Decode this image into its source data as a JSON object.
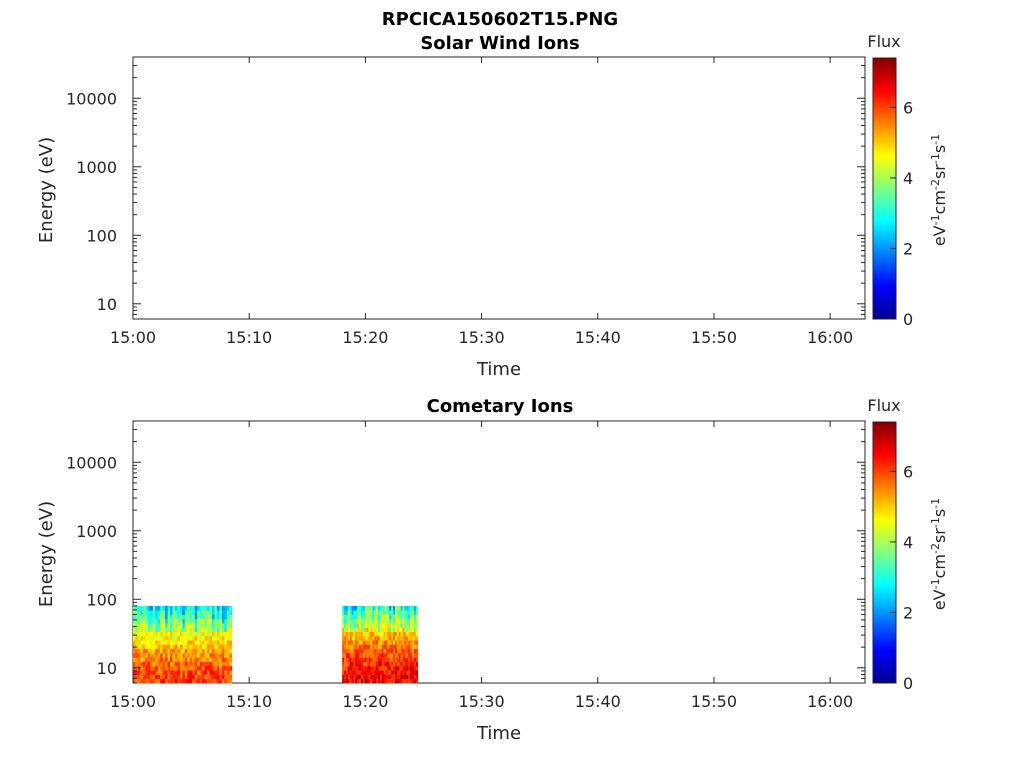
{
  "figure": {
    "title": "RPCICA150602T15.PNG"
  },
  "chart_data": [
    {
      "type": "heatmap",
      "title": "Solar Wind Ions",
      "xlabel": "Time",
      "ylabel": "Energy (eV)",
      "x_ticks": [
        "15:00",
        "15:10",
        "15:20",
        "15:30",
        "15:40",
        "15:50",
        "16:00"
      ],
      "x_range_min": [
        0,
        63
      ],
      "y_scale": "log",
      "y_ticks": [
        "10",
        "100",
        "1000",
        "10000"
      ],
      "ylim": [
        6,
        40000
      ],
      "colorbar": {
        "title": "Flux",
        "label": "eV-1cm-2sr-1s-1",
        "ticks": [
          "0",
          "2",
          "4",
          "6"
        ],
        "range": [
          0,
          7.4
        ],
        "colormap": "jet"
      },
      "blocks": []
    },
    {
      "type": "heatmap",
      "title": "Cometary Ions",
      "xlabel": "Time",
      "ylabel": "Energy (eV)",
      "x_ticks": [
        "15:00",
        "15:10",
        "15:20",
        "15:30",
        "15:40",
        "15:50",
        "16:00"
      ],
      "x_range_min": [
        0,
        63
      ],
      "y_scale": "log",
      "y_ticks": [
        "10",
        "100",
        "1000",
        "10000"
      ],
      "ylim": [
        6,
        40000
      ],
      "colorbar": {
        "title": "Flux",
        "label": "eV-1cm-2sr-1s-1",
        "ticks": [
          "0",
          "2",
          "4",
          "6"
        ],
        "range": [
          0,
          7.4
        ],
        "colormap": "jet"
      },
      "blocks": [
        {
          "t_start_min": 0,
          "t_end_min": 8.5,
          "e_min": 6,
          "e_max": 80,
          "flux_low_energy": 6.0,
          "flux_high_energy": 3.0
        },
        {
          "t_start_min": 18,
          "t_end_min": 24.5,
          "e_min": 6,
          "e_max": 80,
          "flux_low_energy": 6.5,
          "flux_high_energy": 3.5
        }
      ]
    }
  ]
}
